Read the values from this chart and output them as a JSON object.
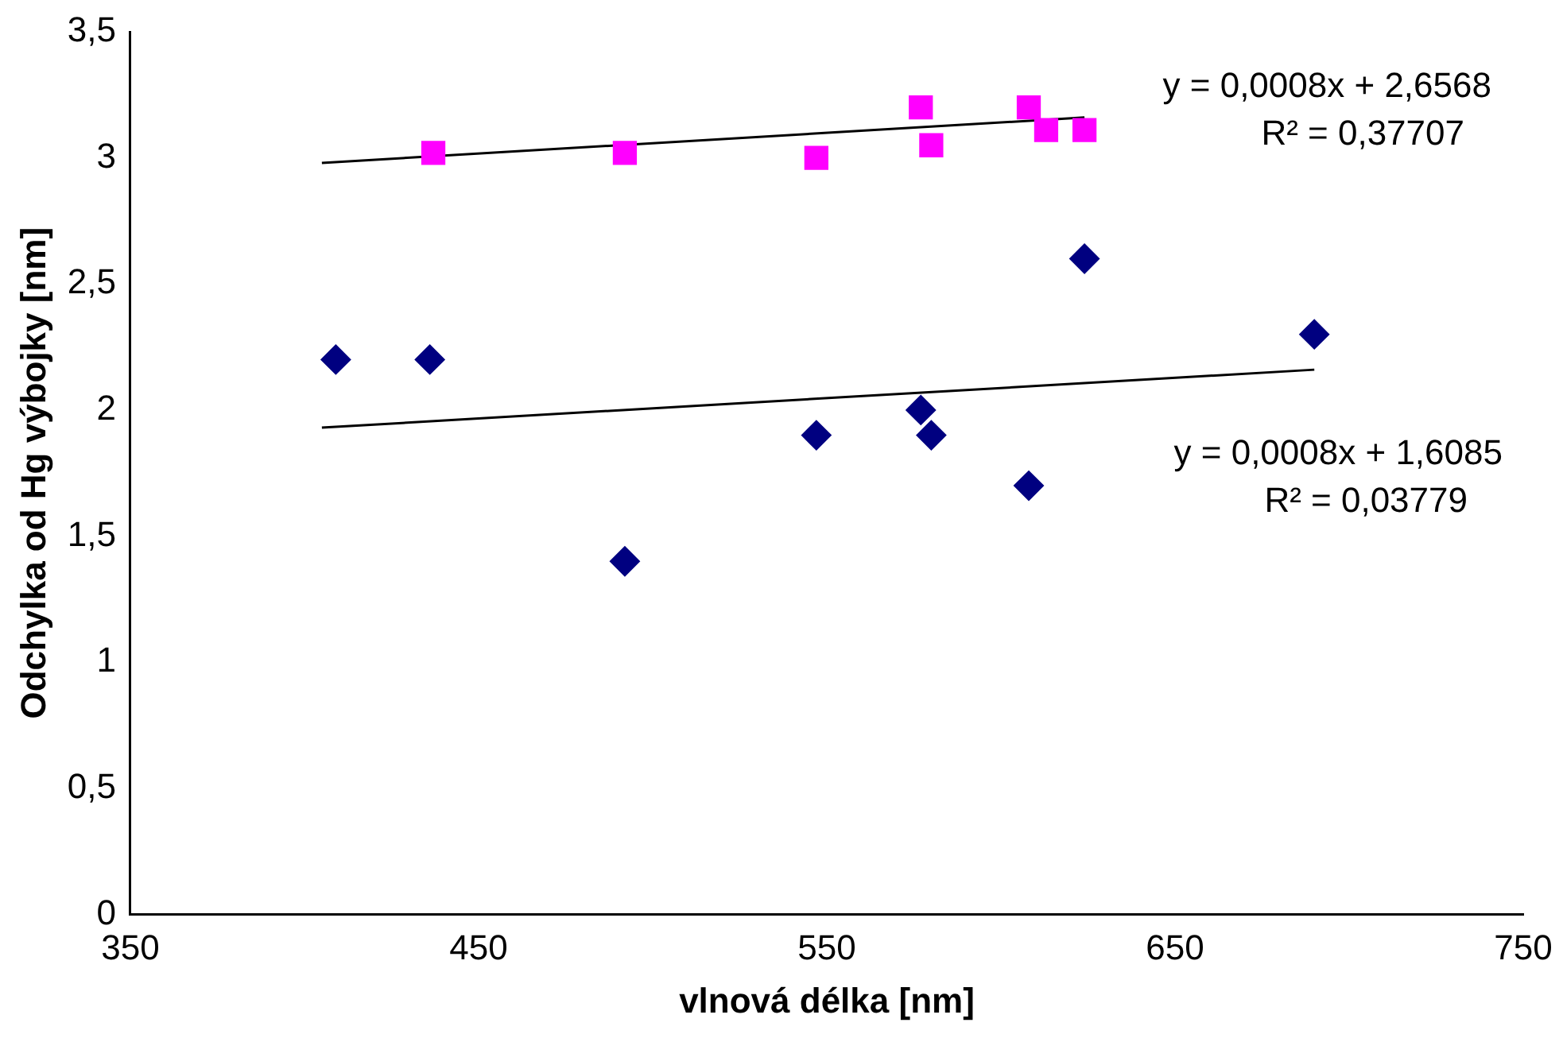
{
  "chart_data": {
    "type": "scatter",
    "xlabel": "vlnová délka [nm]",
    "ylabel": "Odchylka od Hg výbojky [nm]",
    "xlim": [
      350,
      750
    ],
    "xticks": [
      350,
      450,
      550,
      650,
      750
    ],
    "ylim": [
      0,
      3.5
    ],
    "yticks": [
      0,
      {
        "value": 0.5,
        "label": "0,5"
      },
      1,
      {
        "value": 1.5,
        "label": "1,5"
      },
      2,
      {
        "value": 2.5,
        "label": "2,5"
      },
      3,
      {
        "value": 3.5,
        "label": "3,5"
      }
    ],
    "grid": false,
    "legend": false,
    "annotations": [
      "y = 0,0008x + 2,6568",
      "R² = 0,37707",
      "y = 0,0008x + 1,6085",
      "R² = 0,03779"
    ],
    "series": [
      {
        "marker": "diamond",
        "color": "#000080",
        "x": [
          409,
          436,
          492,
          547,
          577,
          580,
          608,
          624,
          690
        ],
        "values": [
          2.2,
          2.2,
          1.4,
          1.9,
          2.0,
          1.9,
          1.7,
          2.6,
          2.3
        ]
      },
      {
        "marker": "square",
        "color": "#ff00ff",
        "x": [
          437,
          492,
          547,
          577,
          580,
          608,
          613,
          624
        ],
        "values": [
          3.02,
          3.02,
          3.0,
          3.2,
          3.05,
          3.2,
          3.11,
          3.11
        ]
      },
      {
        "type": "line",
        "marker": "none",
        "line_style": "solid",
        "color": "#000000",
        "x": [
          405,
          690
        ],
        "values": [
          1.93,
          2.16
        ]
      },
      {
        "type": "line",
        "marker": "none",
        "line_style": "solid",
        "color": "#000000",
        "x": [
          405,
          624
        ],
        "values": [
          2.98,
          3.16
        ]
      }
    ]
  }
}
